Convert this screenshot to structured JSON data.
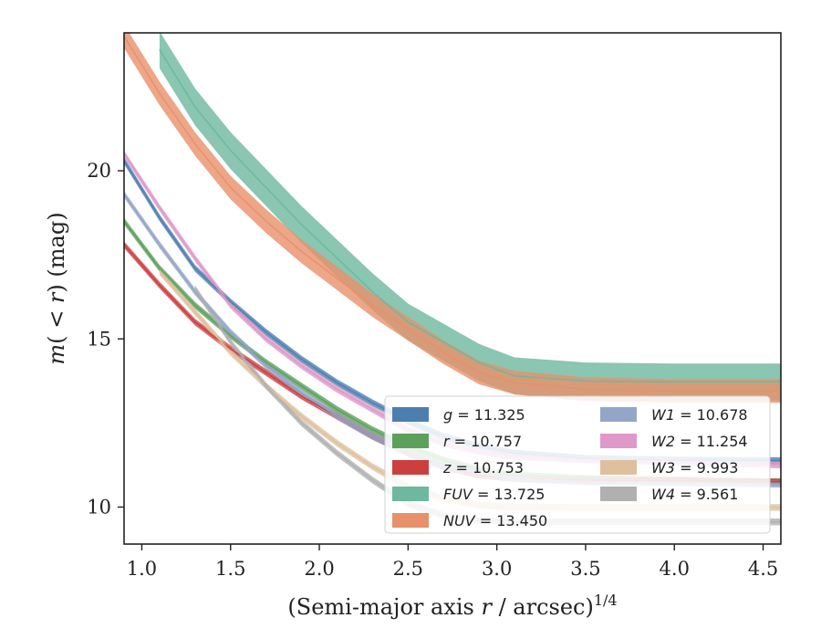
{
  "chart_data": {
    "type": "line",
    "title": "",
    "xlabel": "(Semi-major axis r / arcsec)^(1/4)",
    "xlabel_parts": {
      "pre": "(Semi-major axis ",
      "var": "r",
      "post": " / arcsec)",
      "sup": "1/4"
    },
    "ylabel": "m(<r) (mag)",
    "ylabel_parts": {
      "m": "m",
      "open": "(",
      "lt": " < ",
      "r": "r",
      "close": ")",
      "unit": " (mag)"
    },
    "xlim": [
      0.9,
      4.6
    ],
    "ylim": [
      24.1,
      8.9
    ],
    "y_inverted": true,
    "x_ticks": [
      "1.0",
      "1.5",
      "2.0",
      "2.5",
      "3.0",
      "3.5",
      "4.0",
      "4.5"
    ],
    "y_ticks": [
      "10",
      "15",
      "20"
    ],
    "grid": false,
    "legend_position": "lower-right",
    "series": [
      {
        "name": "g",
        "value": "11.325",
        "color": "#4c7fb0",
        "width": 0.1,
        "x": [
          0.9,
          1.1,
          1.3,
          1.5,
          1.7,
          1.9,
          2.1,
          2.3,
          2.5,
          2.7,
          2.9,
          3.1,
          3.5,
          4.0,
          4.6
        ],
        "y": [
          20.3,
          18.6,
          17.1,
          16.1,
          15.2,
          14.4,
          13.7,
          13.1,
          12.55,
          12.1,
          11.8,
          11.6,
          11.45,
          11.4,
          11.38
        ]
      },
      {
        "name": "r",
        "value": "10.757",
        "color": "#5ca05c",
        "width": 0.1,
        "x": [
          0.9,
          1.1,
          1.3,
          1.5,
          1.7,
          1.9,
          2.1,
          2.3,
          2.5,
          2.7,
          2.9,
          3.1,
          3.5,
          4.0,
          4.6
        ],
        "y": [
          18.5,
          17.1,
          16.0,
          15.1,
          14.3,
          13.6,
          12.9,
          12.3,
          11.8,
          11.4,
          11.1,
          10.95,
          10.85,
          10.8,
          10.75
        ]
      },
      {
        "name": "z",
        "value": "10.753",
        "color": "#cc3f3f",
        "width": 0.1,
        "x": [
          0.9,
          1.1,
          1.3,
          1.5,
          1.7,
          1.9,
          2.1,
          2.3,
          2.5,
          2.7,
          2.9,
          3.1,
          3.5,
          4.0,
          4.6
        ],
        "y": [
          17.8,
          16.6,
          15.5,
          14.7,
          14.0,
          13.3,
          12.7,
          12.1,
          11.6,
          11.2,
          10.95,
          10.85,
          10.8,
          10.78,
          10.75
        ]
      },
      {
        "name": "FUV",
        "value": "13.725",
        "color": "#6db89e",
        "width": 0.55,
        "x": [
          1.1,
          1.3,
          1.5,
          1.7,
          1.9,
          2.1,
          2.3,
          2.5,
          2.7,
          2.9,
          3.1,
          3.5,
          4.0,
          4.4,
          4.6
        ],
        "y": [
          23.6,
          21.9,
          20.6,
          19.5,
          18.4,
          17.4,
          16.4,
          15.5,
          14.9,
          14.3,
          13.9,
          13.75,
          13.72,
          13.72,
          13.72
        ]
      },
      {
        "name": "NUV",
        "value": "13.450",
        "color": "#e8906a",
        "width": 0.35,
        "x": [
          0.9,
          1.1,
          1.3,
          1.5,
          1.7,
          1.9,
          2.1,
          2.3,
          2.5,
          2.7,
          2.9,
          3.1,
          3.5,
          4.0,
          4.6
        ],
        "y": [
          24.0,
          22.3,
          20.8,
          19.5,
          18.5,
          17.6,
          16.8,
          16.0,
          15.3,
          14.6,
          14.0,
          13.7,
          13.5,
          13.45,
          13.45
        ]
      },
      {
        "name": "W1",
        "value": "10.678",
        "color": "#93a5c8",
        "width": 0.1,
        "x": [
          0.9,
          1.1,
          1.3,
          1.5,
          1.7,
          1.9,
          2.1,
          2.3,
          2.5,
          2.7,
          2.9,
          3.1,
          3.5,
          4.0,
          4.6
        ],
        "y": [
          19.3,
          17.8,
          16.4,
          15.2,
          14.2,
          13.4,
          12.7,
          12.1,
          11.6,
          11.2,
          11.0,
          10.85,
          10.75,
          10.72,
          10.68
        ]
      },
      {
        "name": "W2",
        "value": "11.254",
        "color": "#df98c8",
        "width": 0.1,
        "x": [
          0.9,
          1.1,
          1.3,
          1.5,
          1.7,
          1.9,
          2.1,
          2.3,
          2.5,
          2.7,
          2.9,
          3.1,
          3.5,
          4.0,
          4.6
        ],
        "y": [
          20.5,
          18.9,
          17.4,
          16.0,
          15.0,
          14.2,
          13.5,
          12.9,
          12.3,
          11.9,
          11.65,
          11.5,
          11.4,
          11.35,
          11.25
        ]
      },
      {
        "name": "W3",
        "value": "9.993",
        "color": "#dfc09e",
        "width": 0.1,
        "x": [
          1.1,
          1.3,
          1.5,
          1.7,
          1.9,
          2.1,
          2.3,
          2.5,
          2.7,
          2.9,
          3.1,
          3.5,
          4.0,
          4.6
        ],
        "y": [
          17.0,
          15.8,
          14.6,
          13.6,
          12.7,
          11.9,
          11.2,
          10.6,
          10.25,
          10.05,
          10.0,
          9.99,
          9.99,
          9.99
        ]
      },
      {
        "name": "W4",
        "value": "9.561",
        "color": "#b0b0b0",
        "width": 0.1,
        "x": [
          1.3,
          1.5,
          1.7,
          1.9,
          2.1,
          2.3,
          2.5,
          2.7,
          2.9,
          3.1,
          3.5,
          4.0,
          4.6
        ],
        "y": [
          16.5,
          14.9,
          13.6,
          12.5,
          11.6,
          10.8,
          10.1,
          9.75,
          9.6,
          9.56,
          9.56,
          9.56,
          9.56
        ]
      }
    ]
  }
}
